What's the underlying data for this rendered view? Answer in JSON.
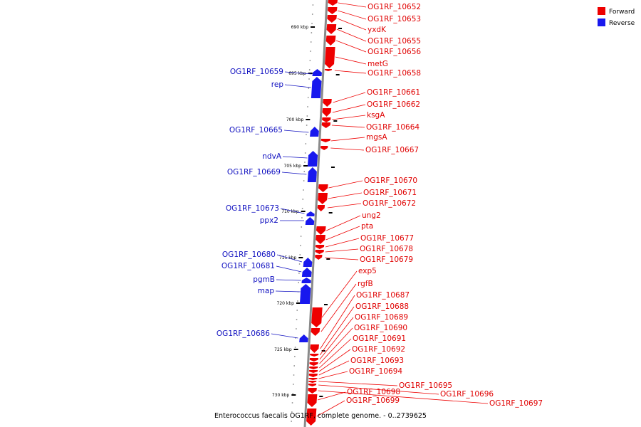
{
  "title": "Enterococcus faecalis OG1RF, complete genome. - 0..2739625",
  "legend": [
    {
      "label": "Forward",
      "color": "#ee0000"
    },
    {
      "label": "Reverse",
      "color": "#1818ee"
    }
  ],
  "colors": {
    "forward": "#ee0000",
    "reverse": "#1818ee",
    "backbone": "#8a8a8a",
    "leader_forward": "#ee0000",
    "leader_reverse": "#1010c0"
  },
  "ticks": [
    "690 kbp",
    "695 kbp",
    "700 kbp",
    "705 kbp",
    "710 kbp",
    "715 kbp",
    "720 kbp",
    "725 kbp",
    "730 kbp"
  ],
  "forward_genes": [
    "OG1RF_10652",
    "OG1RF_10653",
    "yxdK",
    "OG1RF_10655",
    "OG1RF_10656",
    "metG",
    "OG1RF_10658",
    "OG1RF_10661",
    "OG1RF_10662",
    "ksgA",
    "OG1RF_10664",
    "mgsA",
    "OG1RF_10667",
    "OG1RF_10670",
    "OG1RF_10671",
    "OG1RF_10672",
    "ung2",
    "pta",
    "OG1RF_10677",
    "OG1RF_10678",
    "OG1RF_10679",
    "exp5",
    "rgfB",
    "OG1RF_10687",
    "OG1RF_10688",
    "OG1RF_10689",
    "OG1RF_10690",
    "OG1RF_10691",
    "OG1RF_10692",
    "OG1RF_10693",
    "OG1RF_10694",
    "OG1RF_10695",
    "OG1RF_10696",
    "OG1RF_10697",
    "OG1RF_10698",
    "OG1RF_10699"
  ],
  "reverse_genes": [
    "OG1RF_10659",
    "rep",
    "OG1RF_10665",
    "ndvA",
    "OG1RF_10669",
    "OG1RF_10673",
    "ppx2",
    "OG1RF_10680",
    "OG1RF_10681",
    "pgmB",
    "map",
    "OG1RF_10686"
  ]
}
